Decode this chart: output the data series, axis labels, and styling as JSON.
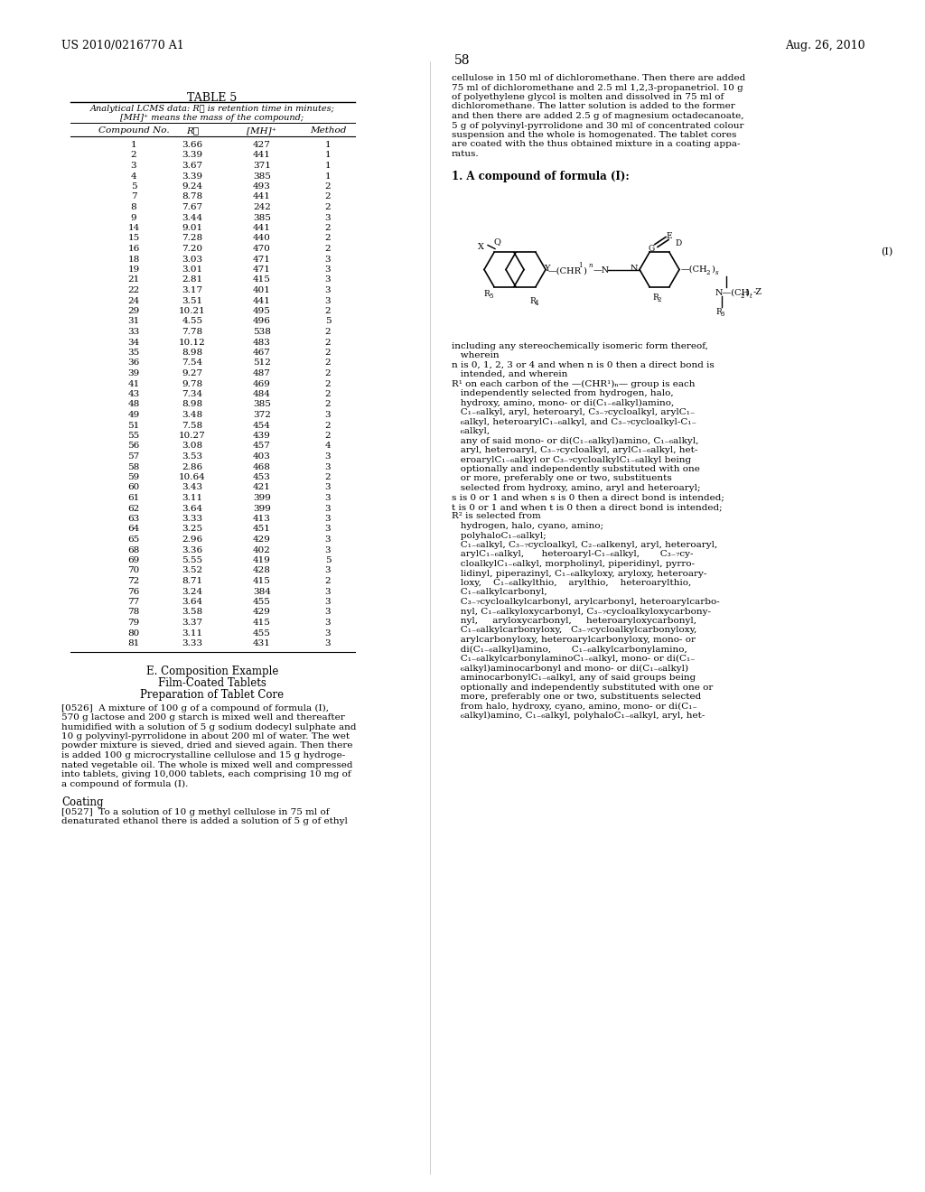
{
  "page_header_left": "US 2010/0216770 A1",
  "page_header_right": "Aug. 26, 2010",
  "page_number": "58",
  "table_title": "TABLE 5",
  "table_subtitle_line1": "Analytical LCMS data: Rℓ is retention time in minutes;",
  "table_subtitle_line2": "[MH]⁺ means the mass of the compound;",
  "table_headers": [
    "Compound No.",
    "Rℓ",
    "[MH]⁺",
    "Method"
  ],
  "table_data": [
    [
      "1",
      "3.66",
      "427",
      "1"
    ],
    [
      "2",
      "3.39",
      "441",
      "1"
    ],
    [
      "3",
      "3.67",
      "371",
      "1"
    ],
    [
      "4",
      "3.39",
      "385",
      "1"
    ],
    [
      "5",
      "9.24",
      "493",
      "2"
    ],
    [
      "7",
      "8.78",
      "441",
      "2"
    ],
    [
      "8",
      "7.67",
      "242",
      "2"
    ],
    [
      "9",
      "3.44",
      "385",
      "3"
    ],
    [
      "14",
      "9.01",
      "441",
      "2"
    ],
    [
      "15",
      "7.28",
      "440",
      "2"
    ],
    [
      "16",
      "7.20",
      "470",
      "2"
    ],
    [
      "18",
      "3.03",
      "471",
      "3"
    ],
    [
      "19",
      "3.01",
      "471",
      "3"
    ],
    [
      "21",
      "2.81",
      "415",
      "3"
    ],
    [
      "22",
      "3.17",
      "401",
      "3"
    ],
    [
      "24",
      "3.51",
      "441",
      "3"
    ],
    [
      "29",
      "10.21",
      "495",
      "2"
    ],
    [
      "31",
      "4.55",
      "496",
      "5"
    ],
    [
      "33",
      "7.78",
      "538",
      "2"
    ],
    [
      "34",
      "10.12",
      "483",
      "2"
    ],
    [
      "35",
      "8.98",
      "467",
      "2"
    ],
    [
      "36",
      "7.54",
      "512",
      "2"
    ],
    [
      "39",
      "9.27",
      "487",
      "2"
    ],
    [
      "41",
      "9.78",
      "469",
      "2"
    ],
    [
      "43",
      "7.34",
      "484",
      "2"
    ],
    [
      "48",
      "8.98",
      "385",
      "2"
    ],
    [
      "49",
      "3.48",
      "372",
      "3"
    ],
    [
      "51",
      "7.58",
      "454",
      "2"
    ],
    [
      "55",
      "10.27",
      "439",
      "2"
    ],
    [
      "56",
      "3.08",
      "457",
      "4"
    ],
    [
      "57",
      "3.53",
      "403",
      "3"
    ],
    [
      "58",
      "2.86",
      "468",
      "3"
    ],
    [
      "59",
      "10.64",
      "453",
      "2"
    ],
    [
      "60",
      "3.43",
      "421",
      "3"
    ],
    [
      "61",
      "3.11",
      "399",
      "3"
    ],
    [
      "62",
      "3.64",
      "399",
      "3"
    ],
    [
      "63",
      "3.33",
      "413",
      "3"
    ],
    [
      "64",
      "3.25",
      "451",
      "3"
    ],
    [
      "65",
      "2.96",
      "429",
      "3"
    ],
    [
      "68",
      "3.36",
      "402",
      "3"
    ],
    [
      "69",
      "5.55",
      "419",
      "5"
    ],
    [
      "70",
      "3.52",
      "428",
      "3"
    ],
    [
      "72",
      "8.71",
      "415",
      "2"
    ],
    [
      "76",
      "3.24",
      "384",
      "3"
    ],
    [
      "77",
      "3.64",
      "455",
      "3"
    ],
    [
      "78",
      "3.58",
      "429",
      "3"
    ],
    [
      "79",
      "3.37",
      "415",
      "3"
    ],
    [
      "80",
      "3.11",
      "455",
      "3"
    ],
    [
      "81",
      "3.33",
      "431",
      "3"
    ]
  ],
  "section_e_title": "E. Composition Example",
  "section_e_subtitle1": "Film-Coated Tablets",
  "section_e_subtitle2": "Preparation of Tablet Core",
  "section_coating": "Coating",
  "bg_color": "#ffffff"
}
